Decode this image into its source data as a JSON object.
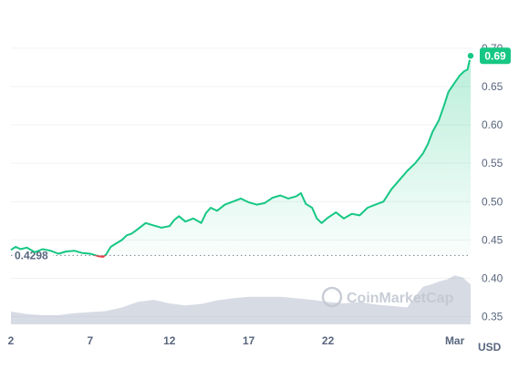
{
  "chart_data": {
    "type": "line",
    "unit": "USD",
    "y_range": [
      0.34,
      0.72
    ],
    "y_ticks": [
      "0.35",
      "0.40",
      "0.45",
      "0.50",
      "0.55",
      "0.60",
      "0.65",
      "0.70"
    ],
    "x_ticks": [
      "2",
      "7",
      "12",
      "17",
      "22",
      "Mar"
    ],
    "x_tick_days": [
      2,
      7,
      12,
      17,
      22,
      30
    ],
    "x_range_days": [
      2,
      31
    ],
    "reference_line": {
      "value": 0.4298,
      "label": "0.4298"
    },
    "last_value": {
      "value": 0.69,
      "label": "0.69"
    },
    "grid": "horizontal",
    "colors": {
      "up": "#16c784",
      "down": "#ea3943",
      "volume": "#a6b0c3"
    },
    "price_series": {
      "day": [
        2.0,
        2.3,
        2.6,
        3.0,
        3.5,
        4.0,
        4.5,
        5.0,
        5.5,
        6.0,
        6.5,
        7.0,
        7.5,
        7.8,
        8.0,
        8.3,
        8.6,
        9.0,
        9.3,
        9.6,
        10.0,
        10.5,
        11.0,
        11.5,
        12.0,
        12.3,
        12.6,
        13.0,
        13.5,
        14.0,
        14.3,
        14.6,
        15.0,
        15.5,
        16.0,
        16.5,
        17.0,
        17.5,
        18.0,
        18.5,
        19.0,
        19.5,
        20.0,
        20.3,
        20.6,
        21.0,
        21.3,
        21.6,
        22.0,
        22.5,
        23.0,
        23.5,
        24.0,
        24.5,
        25.0,
        25.5,
        26.0,
        26.5,
        27.0,
        27.5,
        28.0,
        28.3,
        28.6,
        29.0,
        29.3,
        29.6,
        30.0,
        30.3,
        30.6,
        30.8,
        31.0
      ],
      "price": [
        0.437,
        0.441,
        0.438,
        0.44,
        0.434,
        0.438,
        0.436,
        0.432,
        0.435,
        0.436,
        0.433,
        0.432,
        0.429,
        0.428,
        0.431,
        0.441,
        0.445,
        0.45,
        0.456,
        0.458,
        0.464,
        0.472,
        0.469,
        0.466,
        0.468,
        0.476,
        0.481,
        0.474,
        0.478,
        0.472,
        0.485,
        0.492,
        0.488,
        0.496,
        0.5,
        0.504,
        0.499,
        0.496,
        0.498,
        0.505,
        0.508,
        0.504,
        0.507,
        0.511,
        0.497,
        0.492,
        0.478,
        0.472,
        0.479,
        0.486,
        0.478,
        0.484,
        0.482,
        0.492,
        0.496,
        0.5,
        0.516,
        0.528,
        0.54,
        0.55,
        0.563,
        0.575,
        0.591,
        0.606,
        0.624,
        0.643,
        0.655,
        0.664,
        0.67,
        0.672,
        0.69
      ]
    },
    "volume_series": {
      "day": [
        2.0,
        3.0,
        4.0,
        5.0,
        6.0,
        7.0,
        8.0,
        9.0,
        10.0,
        11.0,
        12.0,
        13.0,
        14.0,
        15.0,
        16.0,
        17.0,
        18.0,
        19.0,
        20.0,
        21.0,
        22.0,
        23.0,
        24.0,
        25.0,
        26.0,
        27.0,
        27.5,
        28.0,
        28.5,
        29.0,
        29.5,
        30.0,
        30.5,
        31.0
      ],
      "level": [
        0.25,
        0.2,
        0.18,
        0.18,
        0.22,
        0.24,
        0.26,
        0.33,
        0.44,
        0.48,
        0.41,
        0.37,
        0.4,
        0.47,
        0.51,
        0.54,
        0.54,
        0.54,
        0.51,
        0.48,
        0.44,
        0.41,
        0.44,
        0.39,
        0.36,
        0.33,
        0.55,
        0.74,
        0.78,
        0.84,
        0.88,
        0.96,
        0.92,
        0.78
      ]
    }
  },
  "watermark": {
    "text": "CoinMarketCap"
  }
}
